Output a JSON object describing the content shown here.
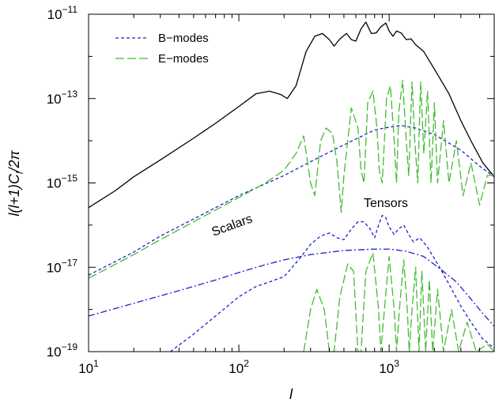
{
  "chart_data": {
    "type": "line",
    "xscale": "log",
    "yscale": "log",
    "xlim": [
      10,
      5000
    ],
    "ylim": [
      1e-19,
      1e-11
    ],
    "grid": false,
    "legend_position": "top-left",
    "xlabel": "l",
    "ylabel": "l(l+1)C",
    "ylabel_sub": "l",
    "ylabel_tail": "/2π",
    "x_ticks": [
      {
        "value": 10,
        "base": "10",
        "exp": "1"
      },
      {
        "value": 100,
        "base": "10",
        "exp": "2"
      },
      {
        "value": 1000,
        "base": "10",
        "exp": "3"
      }
    ],
    "y_ticks": [
      {
        "value": 1e-19,
        "base": "10",
        "exp": "−19"
      },
      {
        "value": 1e-17,
        "base": "10",
        "exp": "−17"
      },
      {
        "value": 1e-15,
        "base": "10",
        "exp": "−15"
      },
      {
        "value": 1e-13,
        "base": "10",
        "exp": "−13"
      },
      {
        "value": 1e-11,
        "base": "10",
        "exp": "−11"
      }
    ],
    "legend": [
      {
        "label": "B−modes",
        "color": "#2222cc",
        "dash": "short"
      },
      {
        "label": "E−modes",
        "color": "#44bb33",
        "dash": "long"
      }
    ],
    "annotations": [
      {
        "text": "Scalars",
        "x": 200,
        "y": 3e-16
      },
      {
        "text": "Tensors",
        "x": 650,
        "y": 5e-17
      }
    ],
    "series": [
      {
        "role": "temperature (scalar)",
        "style": "solid",
        "color": "#000000",
        "points": [
          [
            10,
            2.6e-16
          ],
          [
            15,
            6.5e-16
          ],
          [
            20,
            1.4e-15
          ],
          [
            30,
            3.5e-15
          ],
          [
            50,
            1.15e-14
          ],
          [
            70,
            2.6e-14
          ],
          [
            100,
            6.5e-14
          ],
          [
            130,
            1.3e-13
          ],
          [
            160,
            1.5e-13
          ],
          [
            190,
            1.25e-13
          ],
          [
            210,
            1e-13
          ],
          [
            240,
            2e-13
          ],
          [
            280,
            1.3e-12
          ],
          [
            320,
            3e-12
          ],
          [
            360,
            3.5e-12
          ],
          [
            400,
            2.5e-12
          ],
          [
            430,
            1.75e-12
          ],
          [
            470,
            2.6e-12
          ],
          [
            520,
            3.5e-12
          ],
          [
            560,
            2.5e-12
          ],
          [
            600,
            2.3e-12
          ],
          [
            650,
            4.5e-12
          ],
          [
            700,
            6.5e-12
          ],
          [
            760,
            3.5e-12
          ],
          [
            820,
            3.6e-12
          ],
          [
            880,
            5e-12
          ],
          [
            950,
            6.2e-12
          ],
          [
            1000,
            4e-12
          ],
          [
            1060,
            3e-12
          ],
          [
            1120,
            4e-12
          ],
          [
            1200,
            3.6e-12
          ],
          [
            1300,
            2.5e-12
          ],
          [
            1400,
            2.6e-12
          ],
          [
            1500,
            1.9e-12
          ],
          [
            1700,
            1.3e-12
          ],
          [
            2000,
            5e-13
          ],
          [
            2500,
            1.3e-13
          ],
          [
            3000,
            3e-14
          ],
          [
            3500,
            1e-14
          ],
          [
            4200,
            3e-15
          ],
          [
            5000,
            1.4e-15
          ]
        ]
      },
      {
        "role": "scalar B-modes (lensing)",
        "style": "dash",
        "color": "#2222cc",
        "points": [
          [
            10,
            6.5e-18
          ],
          [
            20,
            2.3e-17
          ],
          [
            30,
            5.5e-17
          ],
          [
            50,
            1.4e-16
          ],
          [
            100,
            5e-16
          ],
          [
            200,
            1.5e-15
          ],
          [
            300,
            3.2e-15
          ],
          [
            500,
            8e-15
          ],
          [
            800,
            1.8e-14
          ],
          [
            1000,
            2.1e-14
          ],
          [
            1200,
            2.3e-14
          ],
          [
            1500,
            2e-14
          ],
          [
            2000,
            1.4e-14
          ],
          [
            3000,
            6e-15
          ],
          [
            4000,
            2.5e-15
          ],
          [
            5000,
            1.4e-15
          ]
        ]
      },
      {
        "role": "scalar E-modes",
        "style": "longdash",
        "color": "#44bb33",
        "points": [
          [
            10,
            5.5e-18
          ],
          [
            20,
            2e-17
          ],
          [
            30,
            4.5e-17
          ],
          [
            50,
            1.2e-16
          ],
          [
            100,
            4.5e-16
          ],
          [
            150,
            1e-15
          ],
          [
            200,
            2e-15
          ],
          [
            240,
            5e-15
          ],
          [
            270,
            1.3e-14
          ],
          [
            300,
            1e-15
          ],
          [
            320,
            5e-16
          ],
          [
            350,
            1e-14
          ],
          [
            380,
            2e-14
          ],
          [
            420,
            1.5e-14
          ],
          [
            450,
            3e-15
          ],
          [
            480,
            2e-16
          ],
          [
            500,
            1.5e-15
          ],
          [
            560,
            6e-14
          ],
          [
            620,
            2e-14
          ],
          [
            650,
            2e-15
          ],
          [
            680,
            1e-15
          ],
          [
            720,
            8e-14
          ],
          [
            780,
            1.5e-13
          ],
          [
            830,
            2e-14
          ],
          [
            860,
            2e-15
          ],
          [
            900,
            1e-15
          ],
          [
            960,
            1e-13
          ],
          [
            1020,
            2e-13
          ],
          [
            1080,
            1e-14
          ],
          [
            1120,
            1e-15
          ],
          [
            1160,
            5e-14
          ],
          [
            1230,
            2.7e-13
          ],
          [
            1300,
            1e-14
          ],
          [
            1350,
            1.5e-15
          ],
          [
            1420,
            2.5e-13
          ],
          [
            1480,
            1e-14
          ],
          [
            1550,
            1e-15
          ],
          [
            1620,
            2.5e-13
          ],
          [
            1700,
            5e-15
          ],
          [
            1800,
            1.5e-13
          ],
          [
            1900,
            1e-15
          ],
          [
            2000,
            8e-14
          ],
          [
            2100,
            1e-15
          ],
          [
            2300,
            3e-14
          ],
          [
            2500,
            1e-15
          ],
          [
            2800,
            1e-14
          ],
          [
            3100,
            5e-16
          ],
          [
            3500,
            3e-15
          ],
          [
            4000,
            3e-16
          ],
          [
            4500,
            1.5e-15
          ],
          [
            5000,
            1.5e-15
          ]
        ]
      },
      {
        "role": "tensor temperature",
        "style": "dashdot",
        "color": "#2222cc",
        "points": [
          [
            10,
            7e-19
          ],
          [
            20,
            1.4e-18
          ],
          [
            40,
            2.8e-18
          ],
          [
            70,
            5e-18
          ],
          [
            100,
            7.5e-18
          ],
          [
            150,
            1.15e-17
          ],
          [
            200,
            1.5e-17
          ],
          [
            300,
            2e-17
          ],
          [
            500,
            2.5e-17
          ],
          [
            800,
            2.7e-17
          ],
          [
            1000,
            2.7e-17
          ],
          [
            1300,
            2.4e-17
          ],
          [
            1700,
            1.8e-17
          ],
          [
            2200,
            9e-18
          ],
          [
            2800,
            4.5e-18
          ],
          [
            3400,
            2e-18
          ],
          [
            4200,
            8e-19
          ],
          [
            5000,
            4e-19
          ]
        ]
      },
      {
        "role": "tensor B-modes",
        "style": "dash",
        "color": "#2222cc",
        "points": [
          [
            35,
            1e-19
          ],
          [
            50,
            2.6e-19
          ],
          [
            70,
            7e-19
          ],
          [
            100,
            2e-18
          ],
          [
            130,
            3.5e-18
          ],
          [
            160,
            4.5e-18
          ],
          [
            200,
            6e-18
          ],
          [
            250,
            1.5e-17
          ],
          [
            300,
            3.5e-17
          ],
          [
            350,
            5.5e-17
          ],
          [
            400,
            6.5e-17
          ],
          [
            450,
            5e-17
          ],
          [
            500,
            4.5e-17
          ],
          [
            560,
            8e-17
          ],
          [
            620,
            1.2e-16
          ],
          [
            680,
            1.2e-16
          ],
          [
            750,
            8e-17
          ],
          [
            800,
            5e-17
          ],
          [
            850,
            1e-16
          ],
          [
            900,
            1.7e-16
          ],
          [
            950,
            1.5e-16
          ],
          [
            1000,
            9e-17
          ],
          [
            1080,
            6e-17
          ],
          [
            1150,
            8e-17
          ],
          [
            1250,
            1e-16
          ],
          [
            1350,
            6e-17
          ],
          [
            1450,
            4e-17
          ],
          [
            1600,
            5e-17
          ],
          [
            1800,
            3e-17
          ],
          [
            2100,
            1.2e-17
          ],
          [
            2500,
            4e-18
          ],
          [
            3000,
            1.2e-18
          ],
          [
            3500,
            5e-19
          ],
          [
            4200,
            2e-19
          ],
          [
            5000,
            1.2e-19
          ]
        ]
      },
      {
        "role": "tensor E-modes",
        "style": "longdash",
        "color": "#44bb33",
        "points": [
          [
            270,
            1e-19
          ],
          [
            300,
            1e-18
          ],
          [
            330,
            3e-18
          ],
          [
            370,
            1e-18
          ],
          [
            400,
            1e-19
          ],
          [
            430,
            1e-19
          ],
          [
            470,
            2e-18
          ],
          [
            530,
            1.2e-17
          ],
          [
            580,
            8e-18
          ],
          [
            620,
            1e-19
          ],
          [
            650,
            1e-19
          ],
          [
            700,
            8e-18
          ],
          [
            780,
            2.2e-17
          ],
          [
            850,
            1e-18
          ],
          [
            880,
            1e-19
          ],
          [
            930,
            1e-18
          ],
          [
            1000,
            1.8e-17
          ],
          [
            1080,
            1e-18
          ],
          [
            1120,
            1e-19
          ],
          [
            1170,
            1e-18
          ],
          [
            1250,
            1.5e-17
          ],
          [
            1320,
            1e-18
          ],
          [
            1360,
            1e-19
          ],
          [
            1420,
            1e-18
          ],
          [
            1500,
            1e-17
          ],
          [
            1580,
            1e-19
          ],
          [
            1650,
            8e-18
          ],
          [
            1750,
            1e-19
          ],
          [
            1850,
            5e-18
          ],
          [
            1950,
            1e-19
          ],
          [
            2100,
            3e-18
          ],
          [
            2300,
            1e-19
          ],
          [
            2600,
            1e-18
          ],
          [
            2900,
            1e-19
          ],
          [
            3300,
            5e-19
          ],
          [
            3800,
            1e-19
          ],
          [
            4500,
            1.5e-19
          ],
          [
            5000,
            1e-19
          ]
        ]
      }
    ]
  }
}
